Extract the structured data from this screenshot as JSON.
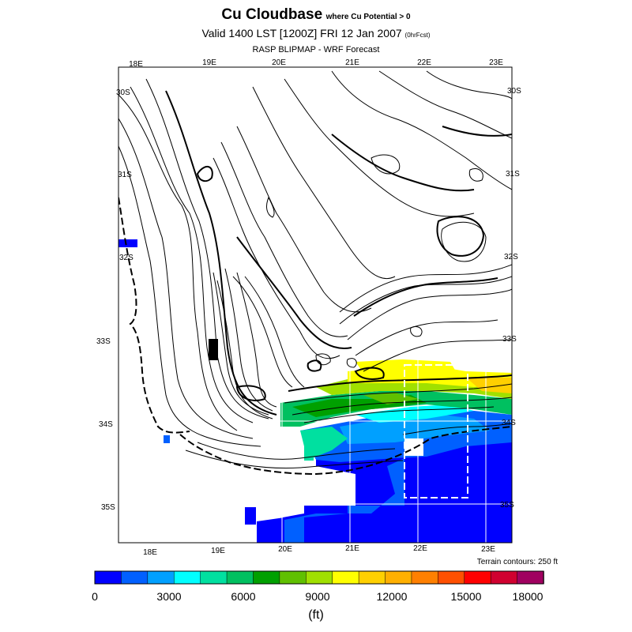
{
  "header": {
    "title": "Cu Cloudbase",
    "title_qualifier": "where Cu Potential > 0",
    "valid_line": "Valid 1400 LST [1200Z] FRI 12 Jan 2007",
    "valid_suffix": "(0hrFcst)",
    "subtitle": "RASP BLIPMAP - WRF Forecast"
  },
  "map": {
    "top_lon_labels": [
      "18E",
      "19E",
      "20E",
      "21E",
      "22E",
      "23E"
    ],
    "bottom_lon_labels": [
      "18E",
      "19E",
      "20E",
      "21E",
      "22E",
      "23E"
    ],
    "left_lat_labels": [
      "30S",
      "31S",
      "32S",
      "33S",
      "34S",
      "35S"
    ],
    "right_lat_labels": [
      "30S",
      "31S",
      "32S",
      "33S",
      "34S",
      "35S"
    ],
    "terrain_note": "Terrain contours: 250 ft"
  },
  "colorbar": {
    "unit": "(ft)",
    "tick_labels": [
      "0",
      "3000",
      "6000",
      "9000",
      "12000",
      "15000",
      "18000"
    ],
    "colors": [
      "#0000ff",
      "#0060ff",
      "#00a0ff",
      "#00ffff",
      "#00e0a0",
      "#00c060",
      "#00a000",
      "#60c000",
      "#a0e000",
      "#ffff00",
      "#ffd000",
      "#ffb000",
      "#ff8000",
      "#ff5000",
      "#ff0000",
      "#d00030",
      "#a00060"
    ]
  }
}
